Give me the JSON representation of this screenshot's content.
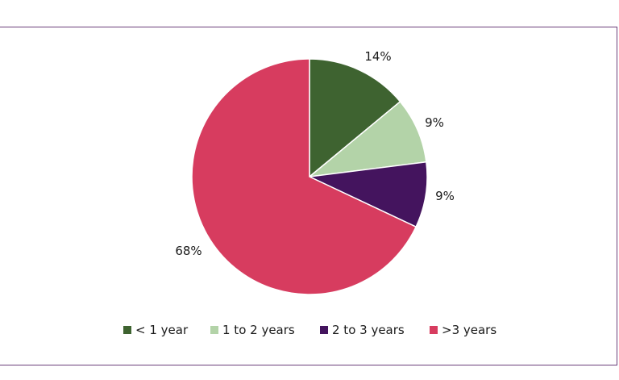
{
  "chart_data": {
    "type": "pie",
    "start_angle_deg": 0,
    "direction": "clockwise",
    "slices": [
      {
        "name": "< 1 year",
        "value": 14,
        "label": "14%",
        "color": "#3e6330"
      },
      {
        "name": "1 to 2 years",
        "value": 9,
        "label": "9%",
        "color": "#b3d3a8"
      },
      {
        "name": "2 to 3 years",
        "value": 9,
        "label": "9%",
        "color": "#44145e"
      },
      {
        "name": ">3 years",
        "value": 68,
        "label": "68%",
        "color": "#d73c5f"
      }
    ],
    "legend_position": "bottom"
  }
}
